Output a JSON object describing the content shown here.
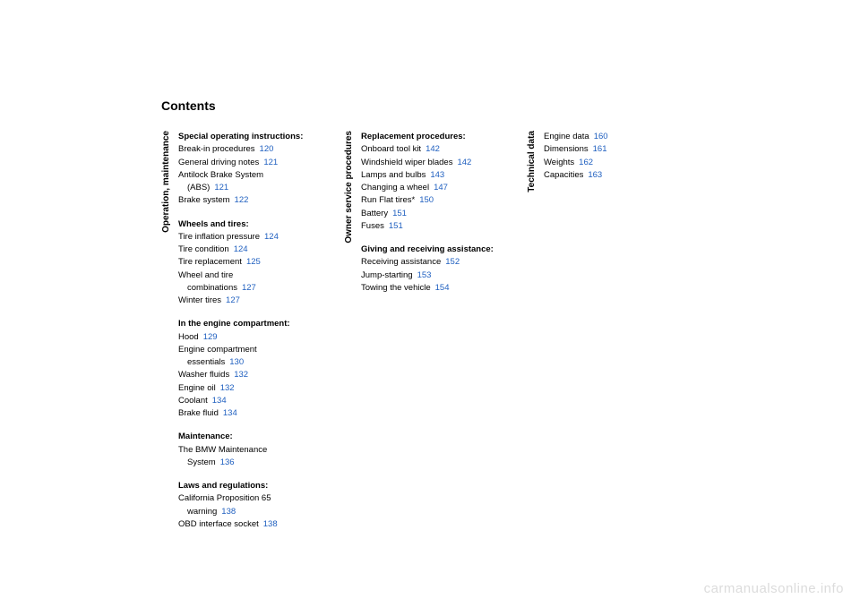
{
  "title": "Contents",
  "watermark": "carmanualsonline.info",
  "page_color": "#2060c0",
  "columns": [
    {
      "label": "Operation, maintenance",
      "sections": [
        {
          "head": "Special operating instructions:",
          "items": [
            {
              "text": "Break-in procedures",
              "page": "120"
            },
            {
              "text": "General driving notes",
              "page": "121"
            },
            {
              "text": "Antilock Brake System",
              "cont": "(ABS)",
              "page": "121"
            },
            {
              "text": "Brake system",
              "page": "122"
            }
          ]
        },
        {
          "head": "Wheels and tires:",
          "items": [
            {
              "text": "Tire inflation pressure",
              "page": "124"
            },
            {
              "text": "Tire condition",
              "page": "124"
            },
            {
              "text": "Tire replacement",
              "page": "125"
            },
            {
              "text": "Wheel and tire",
              "cont": "combinations",
              "page": "127"
            },
            {
              "text": "Winter tires",
              "page": "127"
            }
          ]
        },
        {
          "head": "In the engine compartment:",
          "items": [
            {
              "text": "Hood",
              "page": "129"
            },
            {
              "text": "Engine compartment",
              "cont": "essentials",
              "page": "130"
            },
            {
              "text": "Washer fluids",
              "page": "132"
            },
            {
              "text": "Engine oil",
              "page": "132"
            },
            {
              "text": "Coolant",
              "page": "134"
            },
            {
              "text": "Brake fluid",
              "page": "134"
            }
          ]
        },
        {
          "head": "Maintenance:",
          "items": [
            {
              "text": "The BMW Maintenance",
              "cont": "System",
              "page": "136"
            }
          ]
        },
        {
          "head": "Laws and regulations:",
          "items": [
            {
              "text": "California Proposition 65",
              "cont": "warning",
              "page": "138"
            },
            {
              "text": "OBD interface socket",
              "page": "138"
            }
          ]
        }
      ]
    },
    {
      "label": "Owner service procedures",
      "sections": [
        {
          "head": "Replacement procedures:",
          "items": [
            {
              "text": "Onboard tool kit",
              "page": "142"
            },
            {
              "text": "Windshield wiper blades",
              "page": "142"
            },
            {
              "text": "Lamps and bulbs",
              "page": "143"
            },
            {
              "text": "Changing a wheel",
              "page": "147"
            },
            {
              "text": "Run Flat tires*",
              "page": "150"
            },
            {
              "text": "Battery",
              "page": "151"
            },
            {
              "text": "Fuses",
              "page": "151"
            }
          ]
        },
        {
          "head": "Giving and receiving assistance:",
          "items": [
            {
              "text": "Receiving assistance",
              "page": "152"
            },
            {
              "text": "Jump-starting",
              "page": "153"
            },
            {
              "text": "Towing the vehicle",
              "page": "154"
            }
          ]
        }
      ]
    },
    {
      "label": "Technical data",
      "sections": [
        {
          "head": "",
          "items": [
            {
              "text": "Engine data",
              "page": "160"
            },
            {
              "text": "Dimensions",
              "page": "161"
            },
            {
              "text": "Weights",
              "page": "162"
            },
            {
              "text": "Capacities",
              "page": "163"
            }
          ]
        }
      ]
    }
  ]
}
